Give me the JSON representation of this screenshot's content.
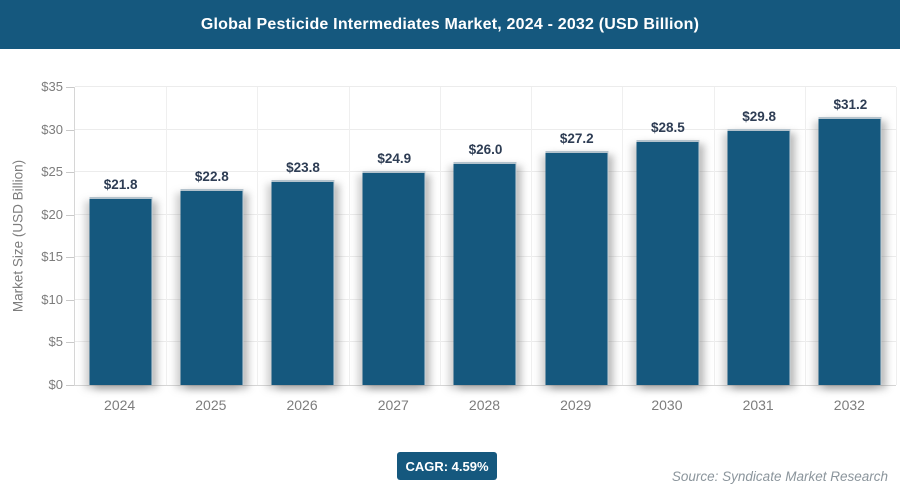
{
  "header": {
    "title": "Global Pesticide Intermediates Market, 2024 - 2032 (USD Billion)",
    "bg_color": "#15587e",
    "text_color": "#ffffff"
  },
  "chart_data": {
    "type": "bar",
    "title": "Global Pesticide Intermediates Market, 2024 - 2032 (USD Billion)",
    "categories": [
      "2024",
      "2025",
      "2026",
      "2027",
      "2028",
      "2029",
      "2030",
      "2031",
      "2032"
    ],
    "values": [
      21.8,
      22.8,
      23.8,
      24.9,
      26.0,
      27.2,
      28.5,
      29.8,
      31.2
    ],
    "value_labels": [
      "$21.8",
      "$22.8",
      "$23.8",
      "$24.9",
      "$26.0",
      "$27.2",
      "$28.5",
      "$29.8",
      "$31.2"
    ],
    "xlabel": "",
    "ylabel": "Market Size (USD Billion)",
    "ylim": [
      0,
      35
    ],
    "y_tick_step": 5,
    "y_tick_labels": [
      "$0",
      "$5",
      "$10",
      "$15",
      "$20",
      "$25",
      "$30",
      "$35"
    ],
    "grid": true,
    "legend": "none",
    "bar_color": "#15587e",
    "value_label_color": "#2e3d54",
    "axis_text_color": "#7d7d7d"
  },
  "footer": {
    "cagr_label": "CAGR: 4.59%",
    "source": "Source: Syndicate Market Research"
  }
}
